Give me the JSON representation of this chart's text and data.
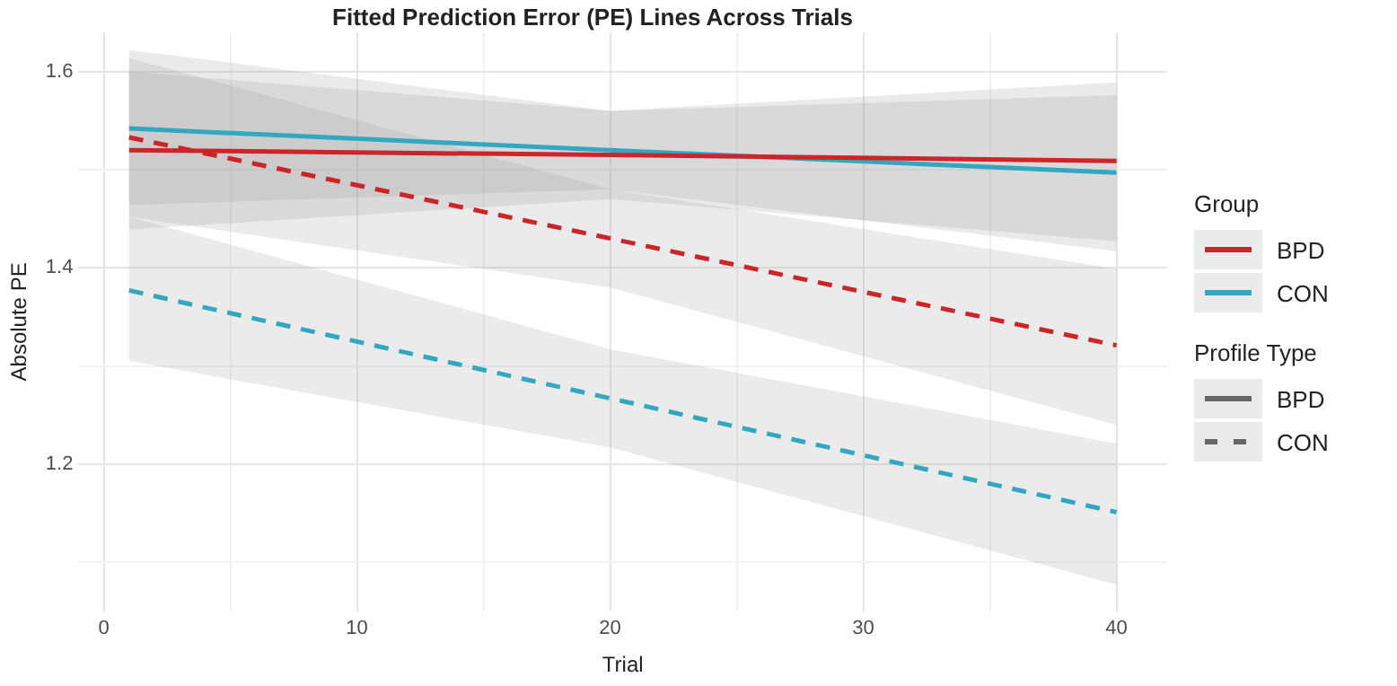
{
  "chart_data": {
    "type": "line",
    "title": "Fitted Prediction Error (PE) Lines Across Trials",
    "xlabel": "Trial",
    "ylabel": "Absolute PE",
    "legend_title": "Group",
    "legend": "right",
    "grid": true,
    "marker": "none",
    "annotations": [
      "Profile Type",
      "BPD",
      "CON"
    ],
    "xlim": [
      -1,
      42
    ],
    "ylim": [
      1.05,
      1.64
    ],
    "xticks": [
      0,
      {
        "value": 5,
        "label": null
      },
      10,
      {
        "value": 15,
        "label": null
      },
      20,
      {
        "value": 25,
        "label": null
      },
      30,
      {
        "value": 35,
        "label": null
      },
      40
    ],
    "yticks": [
      {
        "value": 1.1,
        "label": null
      },
      1.2,
      {
        "value": 1.3,
        "label": null
      },
      1.4,
      {
        "value": 1.5,
        "label": null
      },
      1.6
    ],
    "x": [
      1,
      20,
      40
    ],
    "series": [
      {
        "name": "BPD",
        "color": "#cc2529",
        "line_style": "solid",
        "values": [
          1.52,
          1.515,
          1.509
        ],
        "lower": [
          1.439,
          1.47,
          1.427
        ],
        "upper": [
          1.6,
          1.56,
          1.589
        ]
      },
      {
        "name": "CON",
        "color": "#33a7bf",
        "line_style": "solid",
        "values": [
          1.542,
          1.52,
          1.497
        ],
        "lower": [
          1.464,
          1.48,
          1.417
        ],
        "upper": [
          1.622,
          1.56,
          1.576
        ]
      },
      {
        "color": "#cc2529",
        "line_style": "dashed",
        "values": [
          1.533,
          1.43,
          1.321
        ],
        "lower": [
          1.452,
          1.38,
          1.24
        ],
        "upper": [
          1.614,
          1.48,
          1.399
        ]
      },
      {
        "color": "#33a7bf",
        "line_style": "dashed",
        "values": [
          1.377,
          1.267,
          1.151
        ],
        "lower": [
          1.305,
          1.217,
          1.077
        ],
        "upper": [
          1.452,
          1.317,
          1.221
        ]
      }
    ]
  }
}
